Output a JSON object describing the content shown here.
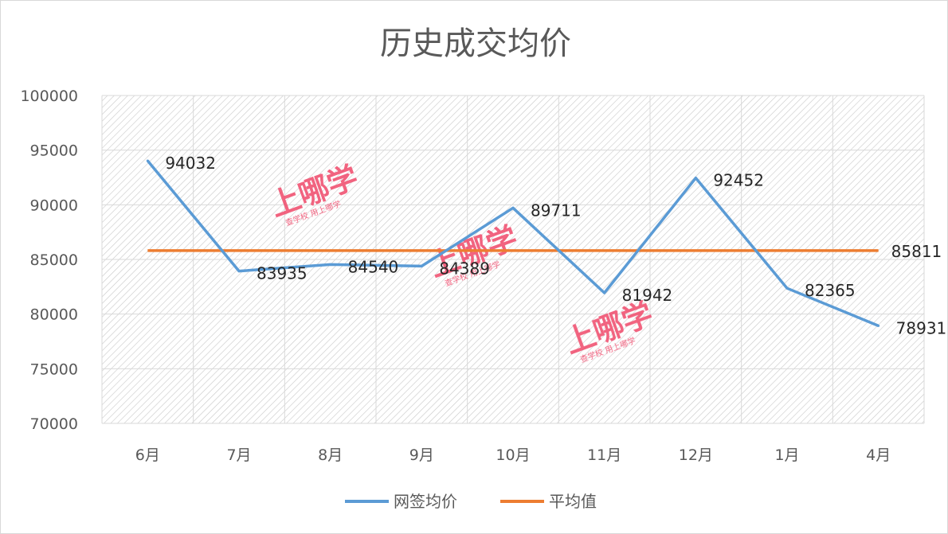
{
  "chart_data": {
    "type": "line",
    "title": "历史成交均价",
    "categories": [
      "6月",
      "7月",
      "8月",
      "9月",
      "10月",
      "11月",
      "12月",
      "1月",
      "4月"
    ],
    "series": [
      {
        "name": "网签均价",
        "color": "#5b9bd5",
        "values": [
          94032,
          83935,
          84540,
          84389,
          89711,
          81942,
          92452,
          82365,
          78931
        ],
        "labels": [
          "94032",
          "83935",
          "84540",
          "84389",
          "89711",
          "81942",
          "92452",
          "82365",
          "78931"
        ]
      },
      {
        "name": "平均值",
        "color": "#ed7d31",
        "values": [
          85811,
          85811,
          85811,
          85811,
          85811,
          85811,
          85811,
          85811,
          85811
        ],
        "end_label": "85811"
      }
    ],
    "ylim": [
      70000,
      100000
    ],
    "yticks": [
      "70000",
      "75000",
      "80000",
      "85000",
      "90000",
      "95000",
      "100000"
    ],
    "xlabel": "",
    "ylabel": "",
    "grid": true,
    "legend": "bottom-center"
  },
  "watermark": {
    "text": "上哪学",
    "subtext": "查学校 用上哪学",
    "color": "#f0486a"
  }
}
